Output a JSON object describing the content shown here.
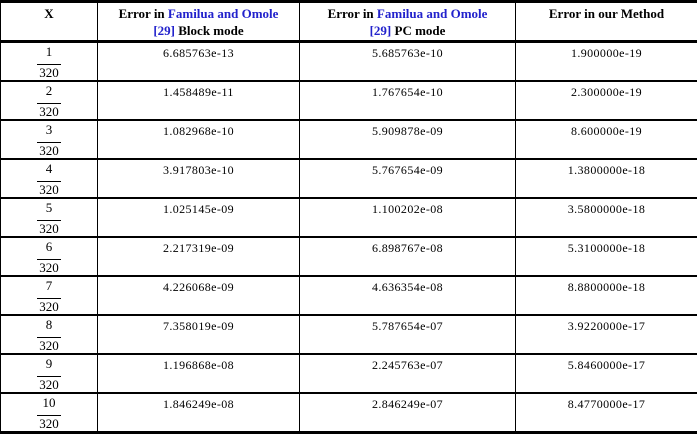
{
  "colors": {
    "reference_blue": "#2222cc",
    "text": "#000000",
    "border": "#000000",
    "background": "#ffffff"
  },
  "header": {
    "x": "X",
    "col_block": {
      "prefix": "Error in",
      "authors": "Familua and Omole",
      "ref": "[29]",
      "mode": "Block mode"
    },
    "col_pc": {
      "prefix": "Error in",
      "authors": "Familua and Omole",
      "ref": "[29]",
      "mode": "PC mode"
    },
    "col_ours": "Error in our Method"
  },
  "table": {
    "rows": [
      {
        "x_num": "1",
        "x_den": "320",
        "block": "6.685763e-13",
        "pc": "5.685763e-10",
        "ours": "1.900000e-19"
      },
      {
        "x_num": "2",
        "x_den": "320",
        "block": "1.458489e-11",
        "pc": "1.767654e-10",
        "ours": "2.300000e-19"
      },
      {
        "x_num": "3",
        "x_den": "320",
        "block": "1.082968e-10",
        "pc": "5.909878e-09",
        "ours": "8.600000e-19"
      },
      {
        "x_num": "4",
        "x_den": "320",
        "block": "3.917803e-10",
        "pc": "5.767654e-09",
        "ours": "1.3800000e-18"
      },
      {
        "x_num": "5",
        "x_den": "320",
        "block": "1.025145e-09",
        "pc": "1.100202e-08",
        "ours": "3.5800000e-18"
      },
      {
        "x_num": "6",
        "x_den": "320",
        "block": "2.217319e-09",
        "pc": "6.898767e-08",
        "ours": "5.3100000e-18"
      },
      {
        "x_num": "7",
        "x_den": "320",
        "block": "4.226068e-09",
        "pc": "4.636354e-08",
        "ours": "8.8800000e-18"
      },
      {
        "x_num": "8",
        "x_den": "320",
        "block": "7.358019e-09",
        "pc": "5.787654e-07",
        "ours": "3.9220000e-17"
      },
      {
        "x_num": "9",
        "x_den": "320",
        "block": "1.196868e-08",
        "pc": "2.245763e-07",
        "ours": "5.8460000e-17"
      },
      {
        "x_num": "10",
        "x_den": "320",
        "block": "1.846249e-08",
        "pc": "2.846249e-07",
        "ours": "8.4770000e-17"
      }
    ]
  }
}
